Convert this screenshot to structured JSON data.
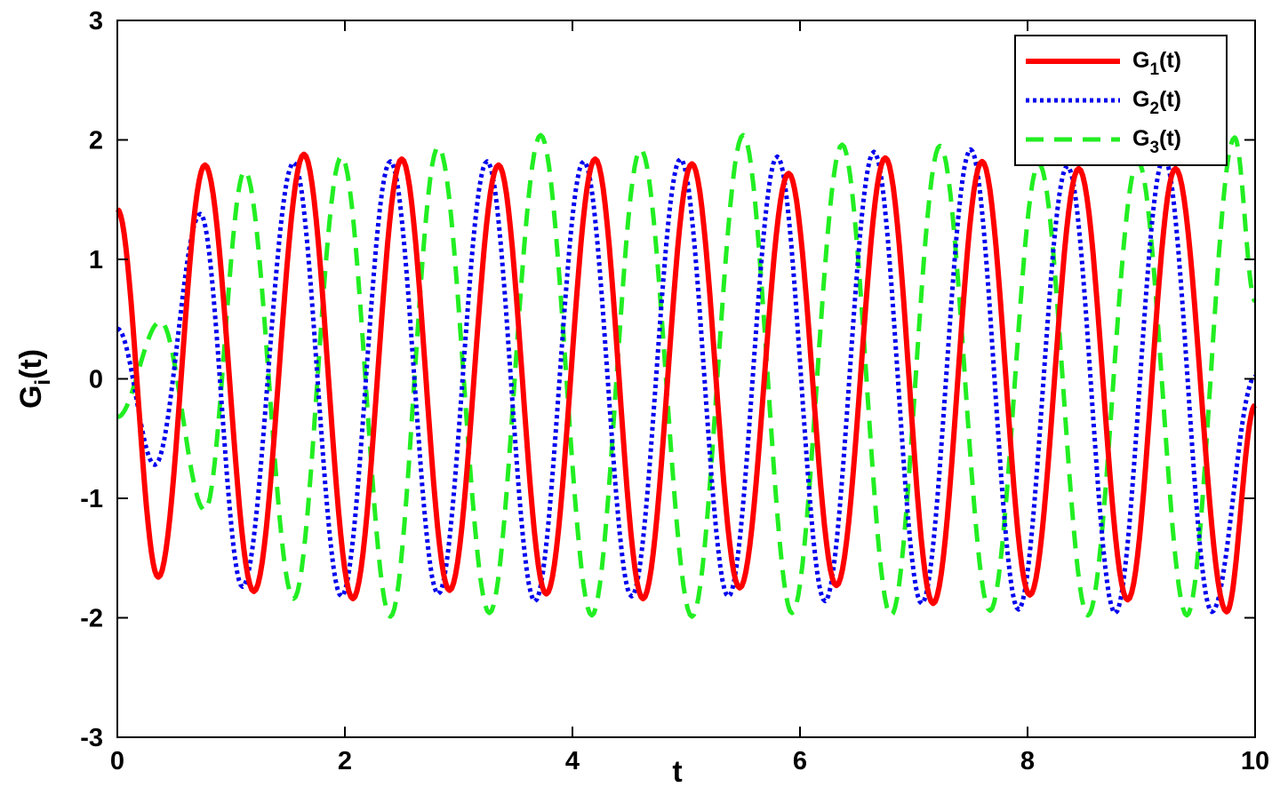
{
  "chart_data": {
    "type": "line",
    "title": "",
    "xlabel": "t",
    "ylabel": "G_i(t)",
    "xlim": [
      0,
      10
    ],
    "ylim": [
      -3,
      3
    ],
    "xticks": [
      0,
      2,
      4,
      6,
      8,
      10
    ],
    "yticks": [
      -3,
      -2,
      -1,
      0,
      1,
      2,
      3
    ],
    "xtick_labels": [
      "0",
      "2",
      "4",
      "6",
      "8",
      "10"
    ],
    "ytick_labels": [
      "-3",
      "-2",
      "-1",
      "0",
      "1",
      "2",
      "3"
    ],
    "grid": false,
    "legend_position": "top-right",
    "series": [
      {
        "name": "G_1(t)",
        "legend_base": "G",
        "legend_sub": "1",
        "legend_tail": "(t)",
        "color": "#ff0000",
        "style": "solid",
        "x": [
          0,
          0.36,
          0.77,
          1.2,
          1.64,
          2.07,
          2.5,
          2.92,
          3.35,
          3.77,
          4.2,
          4.62,
          5.05,
          5.47,
          5.9,
          6.32,
          6.75,
          7.17,
          7.6,
          8.02,
          8.45,
          8.88,
          9.3,
          9.75,
          10
        ],
        "y": [
          1.42,
          -1.66,
          1.79,
          -1.78,
          1.88,
          -1.84,
          1.84,
          -1.77,
          1.79,
          -1.8,
          1.84,
          -1.84,
          1.8,
          -1.75,
          1.72,
          -1.73,
          1.85,
          -1.88,
          1.82,
          -1.81,
          1.76,
          -1.85,
          1.76,
          -1.95,
          -0.22
        ]
      },
      {
        "name": "G_2(t)",
        "legend_base": "G",
        "legend_sub": "2",
        "legend_tail": "(t)",
        "color": "#0000ee",
        "style": "dotted",
        "x": [
          0,
          0.33,
          0.73,
          1.1,
          1.55,
          1.97,
          2.4,
          2.82,
          3.25,
          3.67,
          4.1,
          4.52,
          4.95,
          5.37,
          5.8,
          6.22,
          6.65,
          7.07,
          7.5,
          7.92,
          8.35,
          8.77,
          9.2,
          9.62,
          10
        ],
        "y": [
          0.42,
          -0.72,
          1.38,
          -1.74,
          1.81,
          -1.82,
          1.82,
          -1.8,
          1.82,
          -1.86,
          1.82,
          -1.82,
          1.84,
          -1.82,
          1.86,
          -1.86,
          1.9,
          -1.88,
          1.92,
          -1.93,
          1.78,
          -1.96,
          1.85,
          -1.95,
          0.02
        ]
      },
      {
        "name": "G_3(t)",
        "legend_base": "G",
        "legend_sub": "3",
        "legend_tail": "(t)",
        "color": "#22ee22",
        "style": "dashed",
        "x": [
          0,
          0.38,
          0.77,
          1.12,
          1.55,
          1.97,
          2.4,
          2.82,
          3.27,
          3.72,
          4.17,
          4.6,
          5.05,
          5.5,
          5.93,
          6.37,
          6.8,
          7.23,
          7.67,
          8.1,
          8.53,
          8.97,
          9.4,
          9.82,
          10
        ],
        "y": [
          -0.32,
          0.48,
          -1.1,
          1.74,
          -1.84,
          1.86,
          -1.99,
          1.94,
          -1.96,
          2.04,
          -1.98,
          1.92,
          -1.99,
          2.04,
          -1.96,
          1.96,
          -1.98,
          1.95,
          -1.94,
          1.8,
          -1.98,
          1.82,
          -1.98,
          2.02,
          0.65
        ]
      }
    ]
  }
}
